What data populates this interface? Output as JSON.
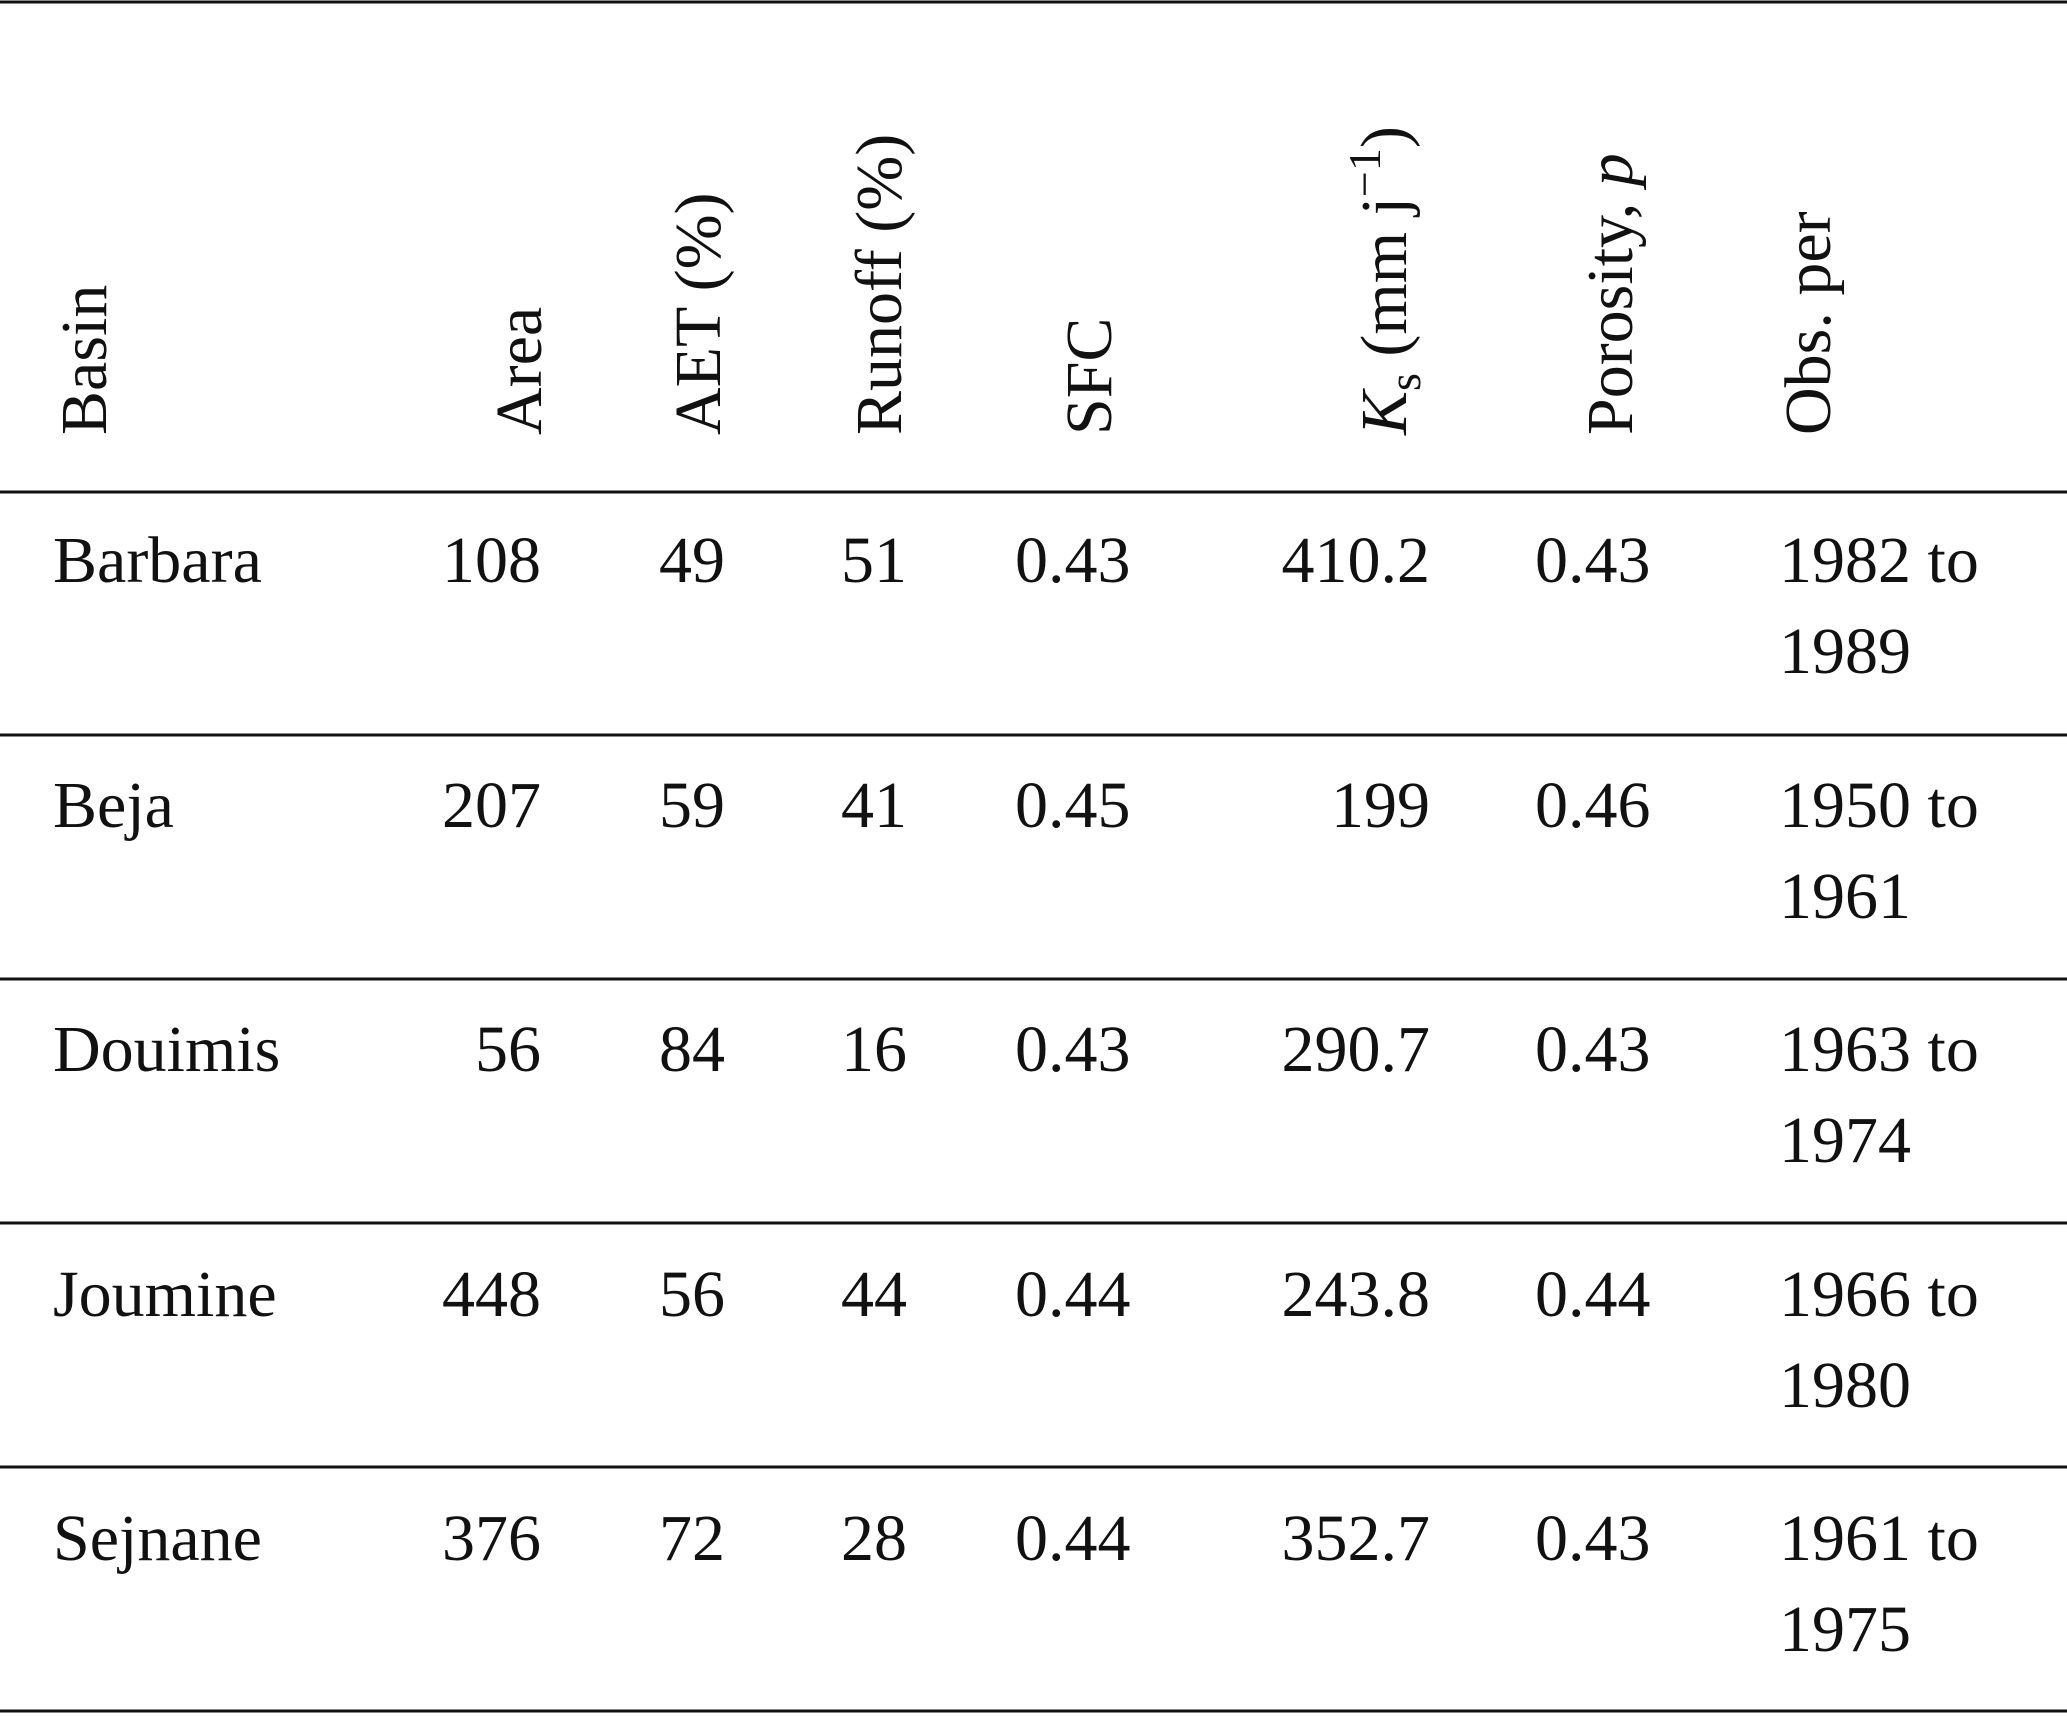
{
  "table": {
    "header": [
      [
        "Basin"
      ],
      [
        "Area"
      ],
      [
        "AET (%)"
      ],
      [
        "Runoff (%)"
      ],
      [
        "SFC"
      ],
      [
        "K",
        "s",
        " (mm j",
        "−1",
        ")"
      ],
      [
        "Porosity, ",
        "p"
      ],
      [
        "Obs. per"
      ]
    ],
    "rows": [
      [
        "Barbara",
        108,
        49,
        51,
        0.43,
        410.2,
        0.43,
        "1982 to 1989"
      ],
      [
        "Beja",
        207,
        59,
        41,
        0.45,
        199,
        0.46,
        "1950 to 1961"
      ],
      [
        "Douimis",
        56,
        84,
        16,
        0.43,
        290.7,
        0.43,
        "1963 to 1974"
      ],
      [
        "Joumine",
        448,
        56,
        44,
        0.44,
        243.8,
        0.44,
        "1966 to 1980"
      ],
      [
        "Sejnane",
        376,
        72,
        28,
        0.44,
        352.7,
        0.43,
        "1961 to 1975"
      ]
    ]
  }
}
